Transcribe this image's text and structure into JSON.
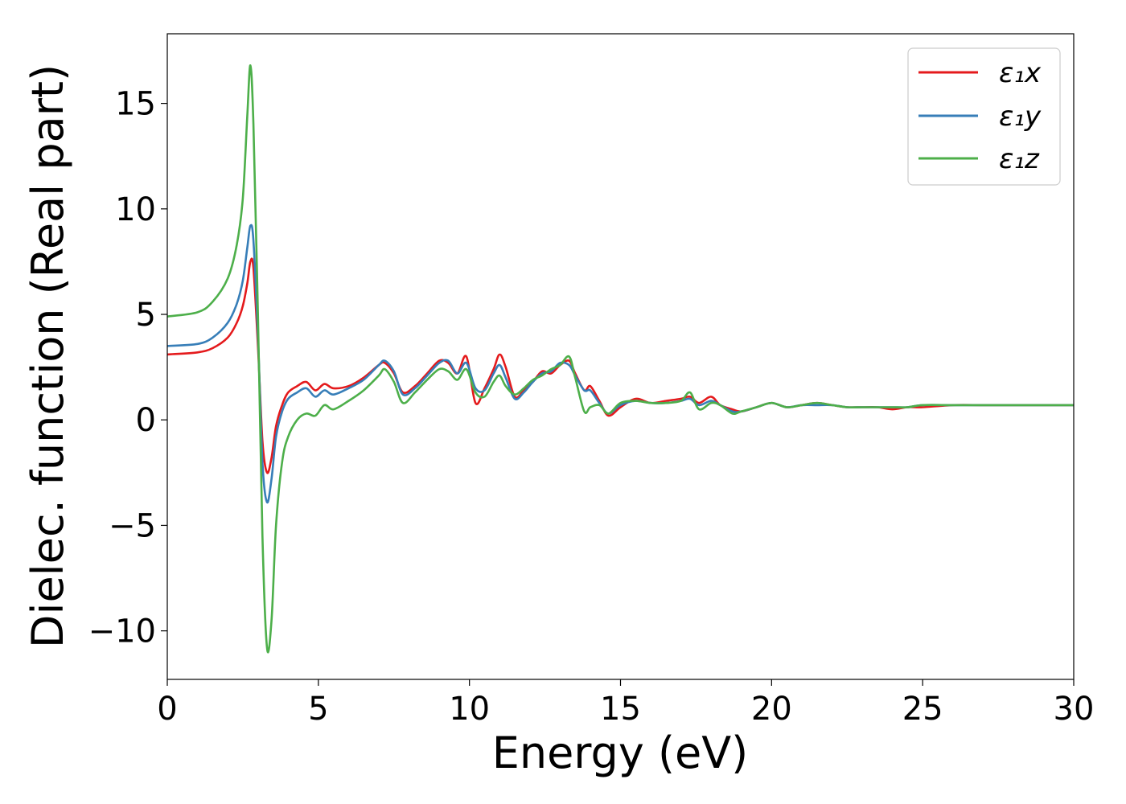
{
  "chart_data": {
    "type": "line",
    "title": "",
    "xlabel": "Energy (eV)",
    "ylabel": "Dielec. function (Real part)",
    "xlim": [
      0,
      30
    ],
    "ylim": [
      -12.3,
      18.3
    ],
    "xticks": [
      0,
      5,
      10,
      15,
      20,
      25,
      30
    ],
    "xtick_labels": [
      "0",
      "5",
      "10",
      "15",
      "20",
      "25",
      "30"
    ],
    "yticks": [
      -10,
      -5,
      0,
      5,
      10,
      15
    ],
    "ytick_labels": [
      "−10",
      "−5",
      "0",
      "5",
      "10",
      "15"
    ],
    "grid": false,
    "legend_position": "top-right",
    "series": [
      {
        "name": "ε₁x",
        "color": "#e41a1c",
        "x": [
          0,
          1,
          1.5,
          2,
          2.3,
          2.5,
          2.65,
          2.75,
          2.85,
          3.0,
          3.15,
          3.3,
          3.45,
          3.6,
          3.8,
          4.0,
          4.3,
          4.6,
          4.9,
          5.2,
          5.5,
          6.0,
          6.5,
          7.0,
          7.2,
          7.5,
          7.8,
          8.2,
          8.6,
          9.0,
          9.3,
          9.6,
          9.9,
          10.2,
          10.5,
          10.8,
          11.0,
          11.2,
          11.5,
          11.8,
          12.1,
          12.4,
          12.7,
          13.0,
          13.3,
          13.5,
          13.8,
          14.0,
          14.3,
          14.6,
          15.0,
          15.5,
          16.0,
          16.5,
          17.0,
          17.3,
          17.6,
          18.0,
          18.3,
          18.7,
          19.0,
          19.5,
          20.0,
          20.5,
          21.0,
          21.5,
          22.0,
          22.5,
          23.0,
          23.5,
          24.0,
          24.5,
          25.0,
          26.0,
          27.0,
          28.0,
          29.0,
          30.0
        ],
        "y": [
          3.1,
          3.2,
          3.4,
          3.9,
          4.6,
          5.4,
          6.5,
          7.5,
          7.2,
          3.5,
          -1.0,
          -2.5,
          -1.8,
          -0.3,
          0.7,
          1.3,
          1.6,
          1.8,
          1.4,
          1.7,
          1.5,
          1.6,
          2.0,
          2.6,
          2.7,
          2.2,
          1.3,
          1.6,
          2.2,
          2.8,
          2.7,
          2.2,
          3.0,
          0.8,
          1.5,
          2.4,
          3.1,
          2.5,
          1.1,
          1.4,
          1.8,
          2.3,
          2.2,
          2.6,
          2.8,
          2.2,
          1.4,
          1.6,
          0.9,
          0.2,
          0.6,
          1.0,
          0.8,
          0.9,
          1.0,
          1.1,
          0.8,
          1.1,
          0.7,
          0.5,
          0.4,
          0.6,
          0.8,
          0.6,
          0.7,
          0.8,
          0.7,
          0.6,
          0.6,
          0.6,
          0.5,
          0.6,
          0.6,
          0.7,
          0.7,
          0.7,
          0.7,
          0.7
        ]
      },
      {
        "name": "ε₁y",
        "color": "#377eb8",
        "x": [
          0,
          1,
          1.5,
          2,
          2.3,
          2.5,
          2.65,
          2.75,
          2.85,
          3.0,
          3.15,
          3.3,
          3.45,
          3.6,
          3.8,
          4.0,
          4.3,
          4.6,
          4.9,
          5.2,
          5.5,
          6.0,
          6.5,
          7.0,
          7.2,
          7.5,
          7.8,
          8.2,
          8.6,
          9.0,
          9.3,
          9.6,
          9.9,
          10.2,
          10.5,
          10.8,
          11.0,
          11.2,
          11.5,
          11.8,
          12.1,
          12.4,
          12.7,
          13.0,
          13.3,
          13.5,
          13.8,
          14.0,
          14.3,
          14.6,
          15.0,
          15.5,
          16.0,
          16.5,
          17.0,
          17.3,
          17.6,
          18.0,
          18.3,
          18.7,
          19.0,
          19.5,
          20.0,
          20.5,
          21.0,
          21.5,
          22.0,
          22.5,
          23.0,
          23.5,
          24.0,
          24.5,
          25.0,
          26.0,
          27.0,
          28.0,
          29.0,
          30.0
        ],
        "y": [
          3.5,
          3.6,
          3.9,
          4.6,
          5.5,
          6.6,
          8.2,
          9.2,
          8.5,
          4.0,
          -2.0,
          -3.9,
          -2.8,
          -0.8,
          0.4,
          1.0,
          1.3,
          1.5,
          1.1,
          1.4,
          1.2,
          1.5,
          1.9,
          2.6,
          2.8,
          2.3,
          1.2,
          1.5,
          2.1,
          2.7,
          2.8,
          2.2,
          2.7,
          1.5,
          1.4,
          2.2,
          2.6,
          2.0,
          1.0,
          1.3,
          1.8,
          2.2,
          2.3,
          2.7,
          2.6,
          2.1,
          1.4,
          1.4,
          0.8,
          0.3,
          0.7,
          0.9,
          0.8,
          0.8,
          0.9,
          1.0,
          0.7,
          0.9,
          0.7,
          0.4,
          0.4,
          0.6,
          0.8,
          0.6,
          0.7,
          0.7,
          0.7,
          0.6,
          0.6,
          0.6,
          0.6,
          0.6,
          0.7,
          0.7,
          0.7,
          0.7,
          0.7,
          0.7
        ]
      },
      {
        "name": "ε₁z",
        "color": "#4daf4a",
        "x": [
          0,
          1,
          1.5,
          2,
          2.3,
          2.5,
          2.65,
          2.75,
          2.85,
          3.0,
          3.15,
          3.3,
          3.45,
          3.6,
          3.8,
          4.0,
          4.3,
          4.6,
          4.9,
          5.2,
          5.5,
          6.0,
          6.5,
          7.0,
          7.2,
          7.5,
          7.8,
          8.2,
          8.6,
          9.0,
          9.3,
          9.6,
          9.9,
          10.2,
          10.5,
          10.8,
          11.0,
          11.2,
          11.5,
          11.8,
          12.1,
          12.4,
          12.7,
          13.0,
          13.3,
          13.5,
          13.8,
          14.0,
          14.3,
          14.6,
          15.0,
          15.5,
          16.0,
          16.5,
          17.0,
          17.3,
          17.6,
          18.0,
          18.3,
          18.7,
          19.0,
          19.5,
          20.0,
          20.5,
          21.0,
          21.5,
          22.0,
          22.5,
          23.0,
          23.5,
          24.0,
          24.5,
          25.0,
          26.0,
          27.0,
          28.0,
          29.0,
          30.0
        ],
        "y": [
          4.9,
          5.1,
          5.6,
          6.7,
          8.3,
          10.5,
          14.5,
          16.8,
          14.0,
          5.0,
          -5.5,
          -10.8,
          -9.5,
          -5.0,
          -2.0,
          -0.8,
          0.0,
          0.3,
          0.2,
          0.7,
          0.5,
          0.9,
          1.4,
          2.1,
          2.4,
          1.8,
          0.8,
          1.3,
          1.9,
          2.4,
          2.3,
          1.9,
          2.4,
          1.3,
          1.1,
          1.8,
          2.1,
          1.6,
          1.2,
          1.5,
          1.9,
          2.1,
          2.4,
          2.6,
          3.0,
          2.0,
          0.4,
          0.6,
          0.7,
          0.3,
          0.8,
          0.9,
          0.8,
          0.8,
          0.9,
          1.3,
          0.5,
          0.8,
          0.7,
          0.3,
          0.4,
          0.6,
          0.8,
          0.6,
          0.7,
          0.8,
          0.7,
          0.6,
          0.6,
          0.6,
          0.6,
          0.6,
          0.7,
          0.7,
          0.7,
          0.7,
          0.7,
          0.7
        ]
      }
    ]
  }
}
